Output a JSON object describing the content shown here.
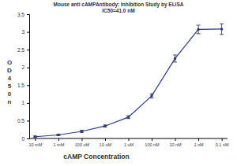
{
  "chart_data": {
    "type": "line",
    "title": "Mouse anti cAMPAntibody: Inhibition Study by ELISA",
    "subtitle": "IC50=41.0 nM",
    "x_label": "cAMP Concentration",
    "y_label": "OD450n",
    "categories": [
      "10 mM",
      "1 mM",
      "100 uM",
      "10 uM",
      "1 uM",
      "100 nM",
      "10 nM",
      "1 nM",
      "0.1 nM"
    ],
    "values": [
      0.05,
      0.1,
      0.2,
      0.35,
      0.6,
      1.2,
      2.25,
      3.07,
      3.08
    ],
    "errors": [
      0.02,
      0.02,
      0.03,
      0.03,
      0.04,
      0.06,
      0.1,
      0.12,
      0.15
    ],
    "color": "#2b3a8c",
    "marker": "circle",
    "ylim": [
      0,
      3.5
    ],
    "yticks": [
      0,
      0.5,
      1,
      1.5,
      2,
      2.5,
      3,
      3.5
    ],
    "grid": false
  }
}
